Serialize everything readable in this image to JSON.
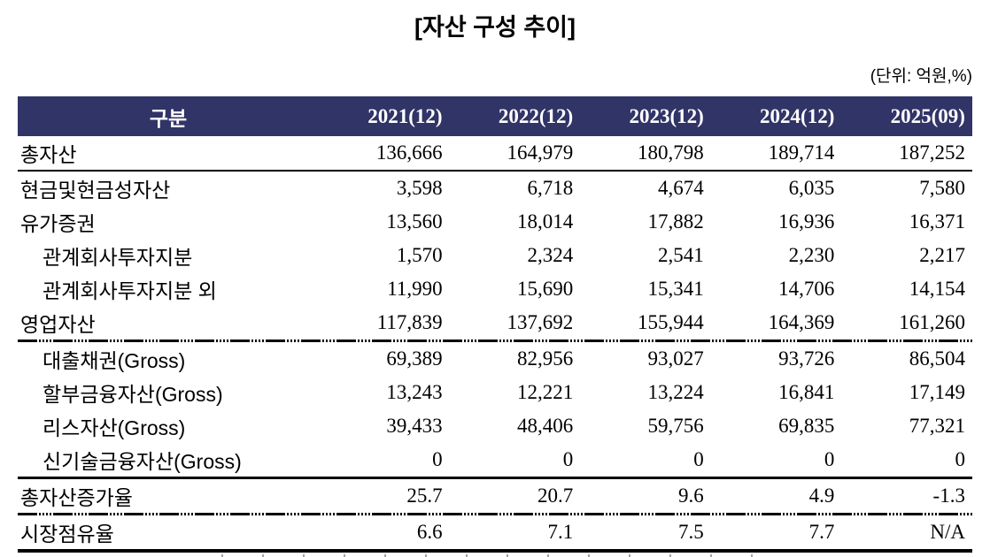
{
  "title": "[자산 구성 추이]",
  "unit_note": "(단위: 억원,%)",
  "colors": {
    "header_bg": "#313467",
    "header_text": "#FFFFFF",
    "body_text": "#000000"
  },
  "table": {
    "header": {
      "label_col": "구분",
      "year_cols": [
        "2021(12)",
        "2022(12)",
        "2023(12)",
        "2024(12)",
        "2025(09)"
      ]
    },
    "rows": [
      {
        "label": "총자산",
        "indent": false,
        "values": [
          "136,666",
          "164,979",
          "180,798",
          "189,714",
          "187,252"
        ]
      },
      {
        "label": "현금및현금성자산",
        "indent": false,
        "values": [
          "3,598",
          "6,718",
          "4,674",
          "6,035",
          "7,580"
        ]
      },
      {
        "label": "유가증권",
        "indent": false,
        "values": [
          "13,560",
          "18,014",
          "17,882",
          "16,936",
          "16,371"
        ]
      },
      {
        "label": "관계회사투자지분",
        "indent": true,
        "values": [
          "1,570",
          "2,324",
          "2,541",
          "2,230",
          "2,217"
        ]
      },
      {
        "label": "관계회사투자지분 외",
        "indent": true,
        "values": [
          "11,990",
          "15,690",
          "15,341",
          "14,706",
          "14,154"
        ]
      },
      {
        "label": "영업자산",
        "indent": false,
        "values": [
          "117,839",
          "137,692",
          "155,944",
          "164,369",
          "161,260"
        ]
      },
      {
        "label": "대출채권(Gross)",
        "indent": true,
        "values": [
          "69,389",
          "82,956",
          "93,027",
          "93,726",
          "86,504"
        ]
      },
      {
        "label": "할부금융자산(Gross)",
        "indent": true,
        "values": [
          "13,243",
          "12,221",
          "13,224",
          "16,841",
          "17,149"
        ]
      },
      {
        "label": "리스자산(Gross)",
        "indent": true,
        "values": [
          "39,433",
          "48,406",
          "59,756",
          "69,835",
          "77,321"
        ]
      },
      {
        "label": "신기술금융자산(Gross)",
        "indent": true,
        "values": [
          "0",
          "0",
          "0",
          "0",
          "0"
        ]
      },
      {
        "label": "총자산증가율",
        "indent": false,
        "values": [
          "25.7",
          "20.7",
          "9.6",
          "4.9",
          "-1.3"
        ]
      },
      {
        "label": "시장점유율",
        "indent": false,
        "values": [
          "6.6",
          "7.1",
          "7.5",
          "7.7",
          "N/A"
        ]
      }
    ]
  },
  "chart_data": {
    "type": "table",
    "title": "자산 구성 추이",
    "unit": "억원,%",
    "columns": [
      "구분",
      "2021(12)",
      "2022(12)",
      "2023(12)",
      "2024(12)",
      "2025(09)"
    ],
    "rows": [
      [
        "총자산",
        136666,
        164979,
        180798,
        189714,
        187252
      ],
      [
        "현금및현금성자산",
        3598,
        6718,
        4674,
        6035,
        7580
      ],
      [
        "유가증권",
        13560,
        18014,
        17882,
        16936,
        16371
      ],
      [
        "관계회사투자지분",
        1570,
        2324,
        2541,
        2230,
        2217
      ],
      [
        "관계회사투자지분 외",
        11990,
        15690,
        15341,
        14706,
        14154
      ],
      [
        "영업자산",
        117839,
        137692,
        155944,
        164369,
        161260
      ],
      [
        "대출채권(Gross)",
        69389,
        82956,
        93027,
        93726,
        86504
      ],
      [
        "할부금융자산(Gross)",
        13243,
        12221,
        13224,
        16841,
        17149
      ],
      [
        "리스자산(Gross)",
        39433,
        48406,
        59756,
        69835,
        77321
      ],
      [
        "신기술금융자산(Gross)",
        0,
        0,
        0,
        0,
        0
      ],
      [
        "총자산증가율",
        25.7,
        20.7,
        9.6,
        4.9,
        -1.3
      ],
      [
        "시장점유율",
        6.6,
        7.1,
        7.5,
        7.7,
        "N/A"
      ]
    ]
  }
}
